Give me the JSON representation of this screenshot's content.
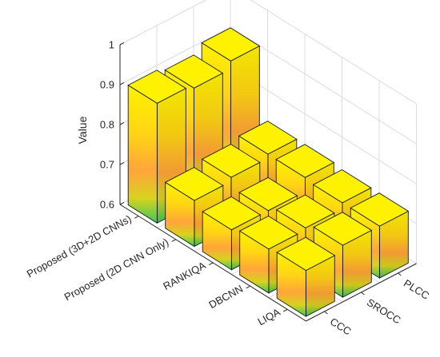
{
  "chart_data": {
    "type": "bar3d",
    "ylabel": "Value",
    "zlim": [
      0.6,
      1.0
    ],
    "zticks": [
      "0.6",
      "0.7",
      "0.8",
      "0.9",
      "1"
    ],
    "categories": [
      "Proposed (3D+2D CNNs)",
      "Proposed (2D CNN Only)",
      "RANKIQA",
      "DBCNN",
      "LIQA"
    ],
    "metrics": [
      "CCC",
      "SROCC",
      "PLCC"
    ],
    "values": [
      [
        0.9,
        0.89,
        0.91
      ],
      [
        0.715,
        0.725,
        0.735
      ],
      [
        0.7,
        0.7,
        0.735
      ],
      [
        0.71,
        0.715,
        0.73
      ],
      [
        0.715,
        0.73,
        0.73
      ]
    ],
    "grid": true,
    "colormap": "parula-top",
    "colors": {
      "bar_top": "#fff200",
      "bar_mid": "#ffa53a",
      "bar_bottom": "#3ec85a",
      "edge": "#1a1a1a",
      "axis": "#262626",
      "grid": "#dcdcdc"
    }
  }
}
